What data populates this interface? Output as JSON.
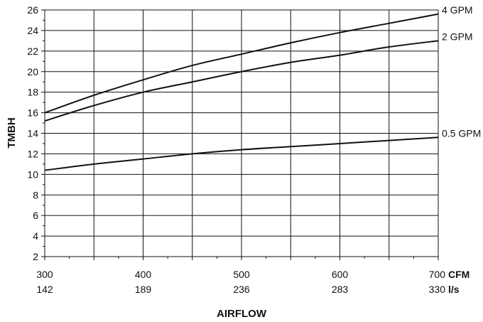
{
  "chart_data": {
    "type": "line",
    "title": "",
    "ylabel": "TMBH",
    "xlabel": "AIRFLOW",
    "xlim": [
      300,
      700
    ],
    "ylim": [
      2,
      26
    ],
    "y_ticks": [
      2,
      4,
      6,
      8,
      10,
      12,
      14,
      16,
      18,
      20,
      22,
      24,
      26
    ],
    "x_ticks_cfm": [
      300,
      400,
      500,
      600,
      700
    ],
    "x_ticks_ls": [
      142,
      189,
      236,
      283,
      330
    ],
    "x_unit_primary": "CFM",
    "x_unit_secondary": "l/s",
    "grid": true,
    "series": [
      {
        "name": "4 GPM",
        "x": [
          300,
          350,
          400,
          450,
          500,
          550,
          600,
          650,
          700
        ],
        "values": [
          16.0,
          17.7,
          19.2,
          20.6,
          21.7,
          22.8,
          23.8,
          24.7,
          25.6
        ]
      },
      {
        "name": "2 GPM",
        "x": [
          300,
          350,
          400,
          450,
          500,
          550,
          600,
          650,
          700
        ],
        "values": [
          15.2,
          16.7,
          18.0,
          19.0,
          20.0,
          20.9,
          21.6,
          22.4,
          23.0
        ]
      },
      {
        "name": "0.5 GPM",
        "x": [
          300,
          350,
          400,
          450,
          500,
          550,
          600,
          650,
          700
        ],
        "values": [
          10.4,
          11.0,
          11.5,
          12.0,
          12.4,
          12.7,
          13.0,
          13.3,
          13.6
        ]
      }
    ]
  }
}
